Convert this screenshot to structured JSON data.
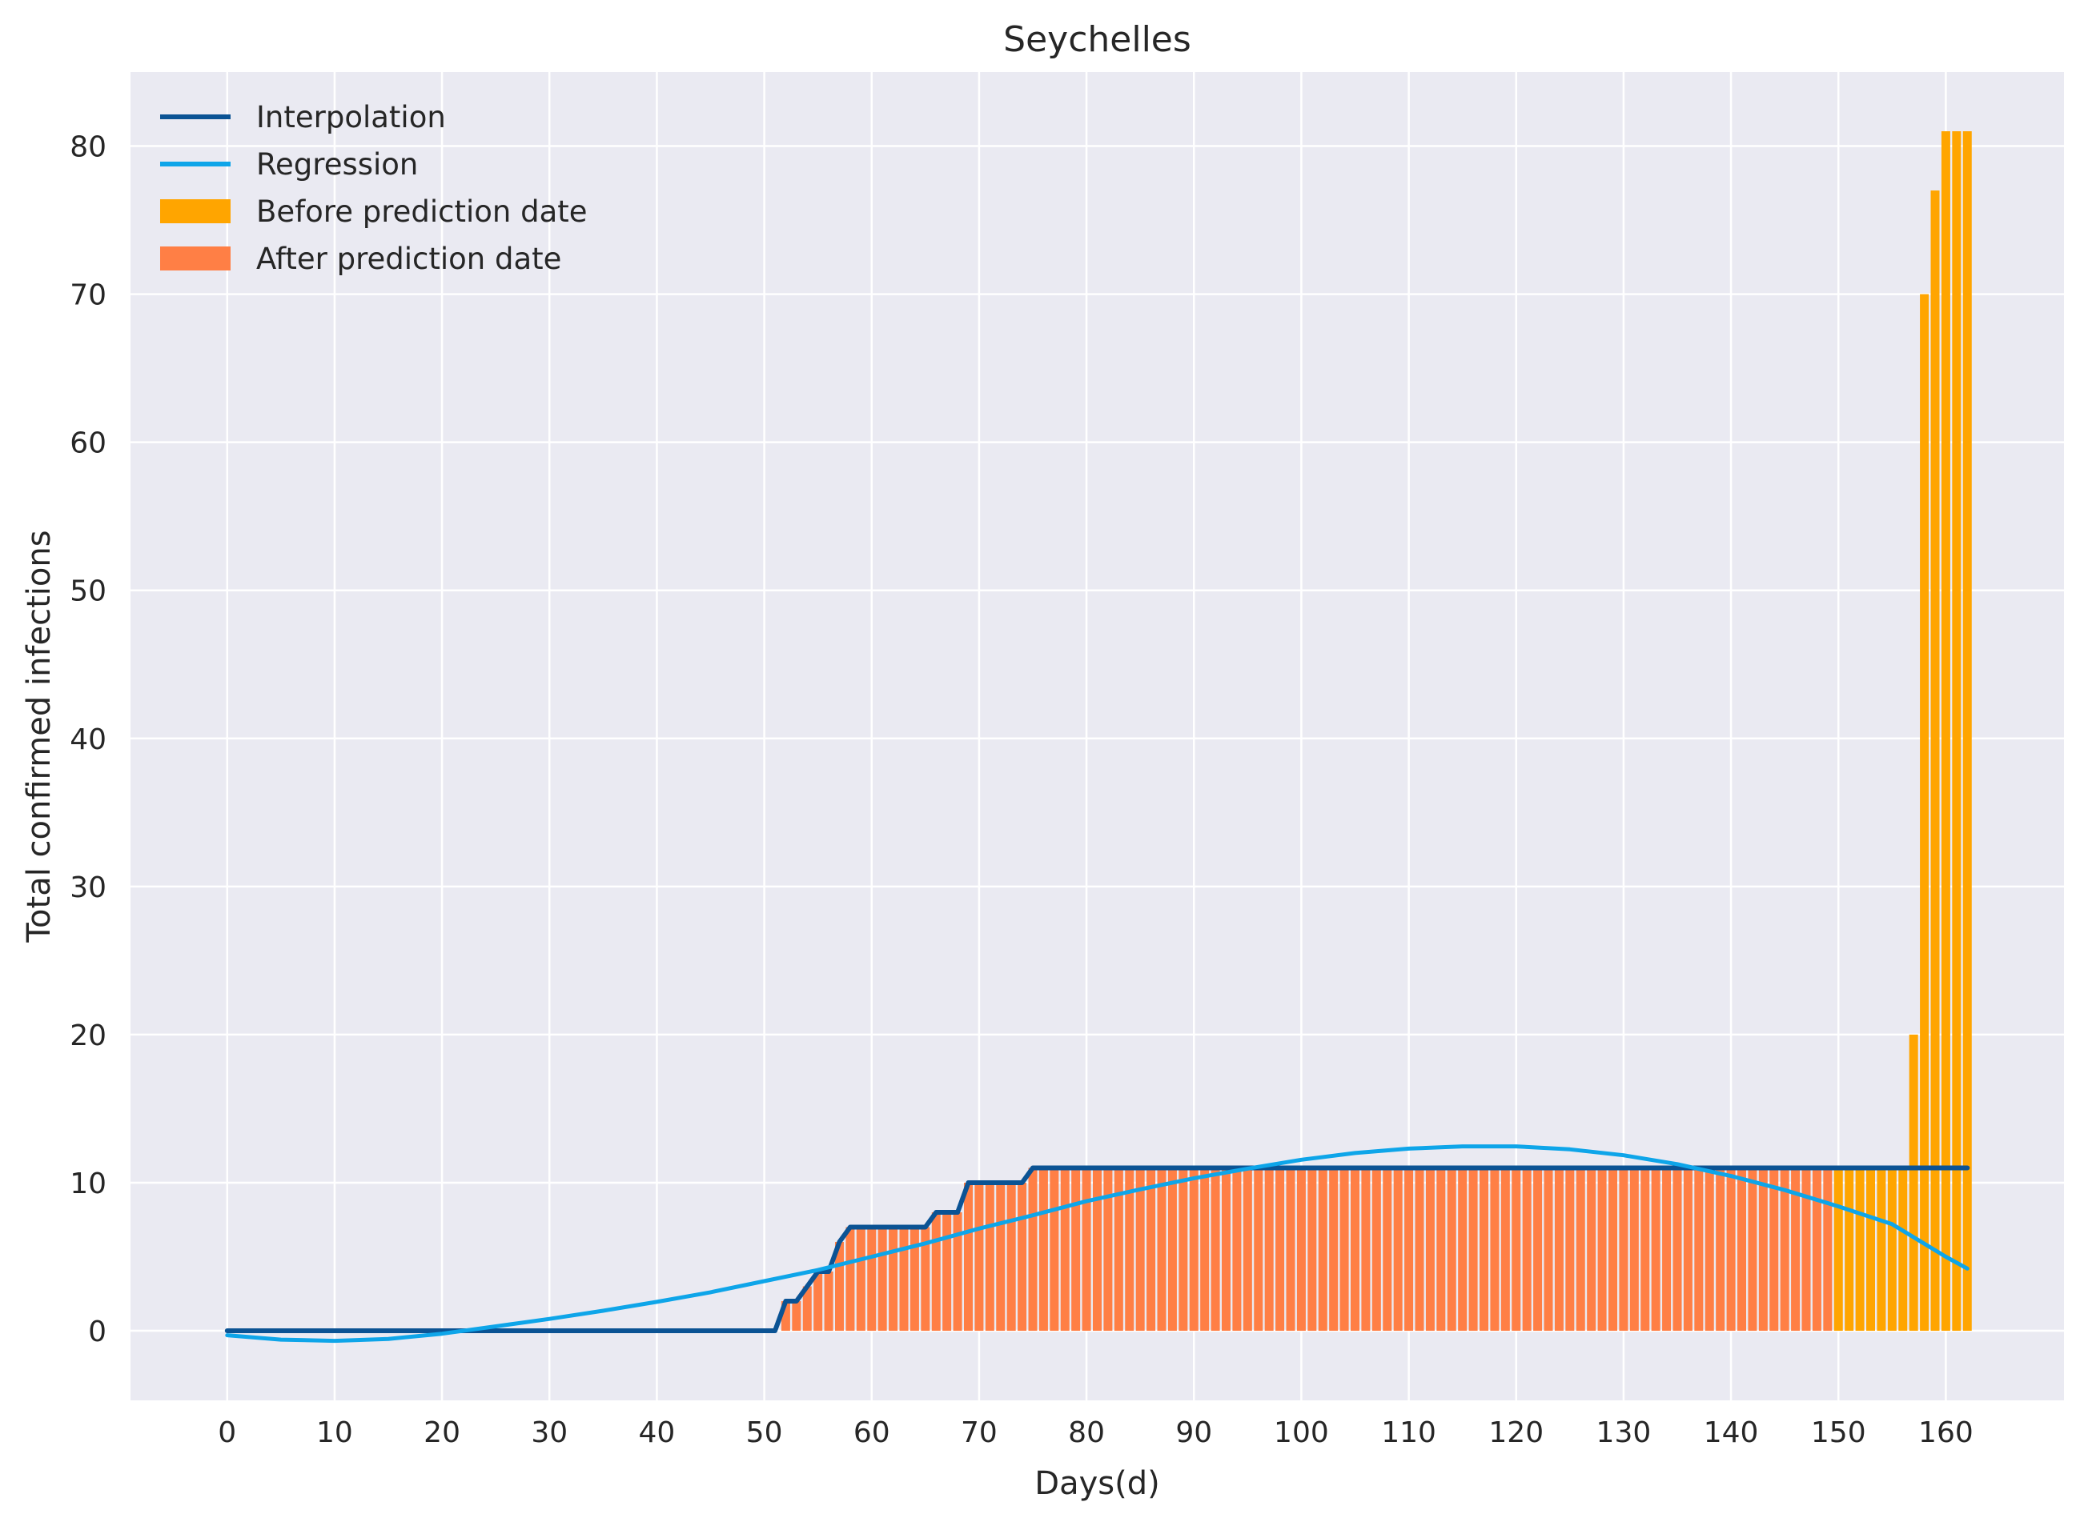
{
  "chart_data": {
    "type": "bar",
    "title": "Seychelles",
    "xlabel": "Days(d)",
    "ylabel": "Total confirmed infections",
    "xlim": [
      -9,
      171
    ],
    "ylim": [
      -4.7,
      85.0
    ],
    "x_ticks": [
      0,
      10,
      20,
      30,
      40,
      50,
      60,
      70,
      80,
      90,
      100,
      110,
      120,
      130,
      140,
      150,
      160
    ],
    "y_ticks": [
      0,
      10,
      20,
      30,
      40,
      50,
      60,
      70,
      80
    ],
    "grid": true,
    "legend_position": "top-left",
    "colors": {
      "background": "#eaeaf2",
      "grid": "#ffffff",
      "interpolation": "#0b5394",
      "regression": "#0ea5e9",
      "before": "#ffa500",
      "after": "#ff7f45"
    },
    "legend": [
      {
        "key": "interpolation",
        "label": "Interpolation",
        "kind": "line"
      },
      {
        "key": "regression",
        "label": "Regression",
        "kind": "line"
      },
      {
        "key": "before",
        "label": "Before prediction date",
        "kind": "patch"
      },
      {
        "key": "after",
        "label": "After prediction date",
        "kind": "patch"
      }
    ],
    "series": [
      {
        "name": "After prediction date",
        "type": "bar",
        "x_start": 52,
        "values": [
          2,
          2,
          3,
          4,
          4,
          6,
          7,
          7,
          7,
          7,
          7,
          7,
          7,
          7,
          8,
          8,
          8,
          10,
          10,
          10,
          10,
          10,
          10,
          11,
          11,
          11,
          11,
          11,
          11,
          11,
          11,
          11,
          11,
          11,
          11,
          11,
          11,
          11,
          11,
          11,
          11,
          11,
          11,
          11,
          11,
          11,
          11,
          11,
          11,
          11,
          11,
          11,
          11,
          11,
          11,
          11,
          11,
          11,
          11,
          11,
          11,
          11,
          11,
          11,
          11,
          11,
          11,
          11,
          11,
          11,
          11,
          11,
          11,
          11,
          11,
          11,
          11,
          11,
          11,
          11,
          11,
          11,
          11,
          11,
          11,
          11,
          11,
          11,
          11,
          11,
          11,
          11,
          11,
          11,
          11,
          11,
          11,
          11
        ]
      },
      {
        "name": "Before prediction date",
        "type": "bar",
        "x_start": 150,
        "values": [
          11,
          11,
          11,
          11,
          11,
          11,
          11,
          20,
          70,
          77,
          81,
          81,
          81
        ]
      },
      {
        "name": "Interpolation",
        "type": "line",
        "points": [
          [
            0,
            0
          ],
          [
            51,
            0
          ],
          [
            52,
            2
          ],
          [
            53,
            2
          ],
          [
            54,
            3
          ],
          [
            55,
            4
          ],
          [
            56,
            4
          ],
          [
            57,
            6
          ],
          [
            58,
            7
          ],
          [
            65,
            7
          ],
          [
            66,
            8
          ],
          [
            68,
            8
          ],
          [
            69,
            10
          ],
          [
            74,
            10
          ],
          [
            75,
            11
          ],
          [
            162,
            11
          ]
        ]
      },
      {
        "name": "Regression",
        "type": "line",
        "points": [
          [
            0,
            -0.3
          ],
          [
            5,
            -0.6
          ],
          [
            10,
            -0.68
          ],
          [
            15,
            -0.55
          ],
          [
            20,
            -0.2
          ],
          [
            25,
            0.3
          ],
          [
            30,
            0.8
          ],
          [
            35,
            1.35
          ],
          [
            40,
            1.95
          ],
          [
            45,
            2.6
          ],
          [
            50,
            3.35
          ],
          [
            55,
            4.1
          ],
          [
            60,
            5.0
          ],
          [
            65,
            5.9
          ],
          [
            70,
            6.9
          ],
          [
            75,
            7.8
          ],
          [
            80,
            8.75
          ],
          [
            85,
            9.55
          ],
          [
            90,
            10.3
          ],
          [
            95,
            10.95
          ],
          [
            100,
            11.55
          ],
          [
            105,
            12.0
          ],
          [
            110,
            12.3
          ],
          [
            115,
            12.45
          ],
          [
            120,
            12.45
          ],
          [
            125,
            12.25
          ],
          [
            130,
            11.85
          ],
          [
            135,
            11.25
          ],
          [
            140,
            10.45
          ],
          [
            145,
            9.5
          ],
          [
            150,
            8.4
          ],
          [
            155,
            7.2
          ],
          [
            160,
            5.0
          ],
          [
            162,
            4.2
          ]
        ]
      }
    ]
  }
}
